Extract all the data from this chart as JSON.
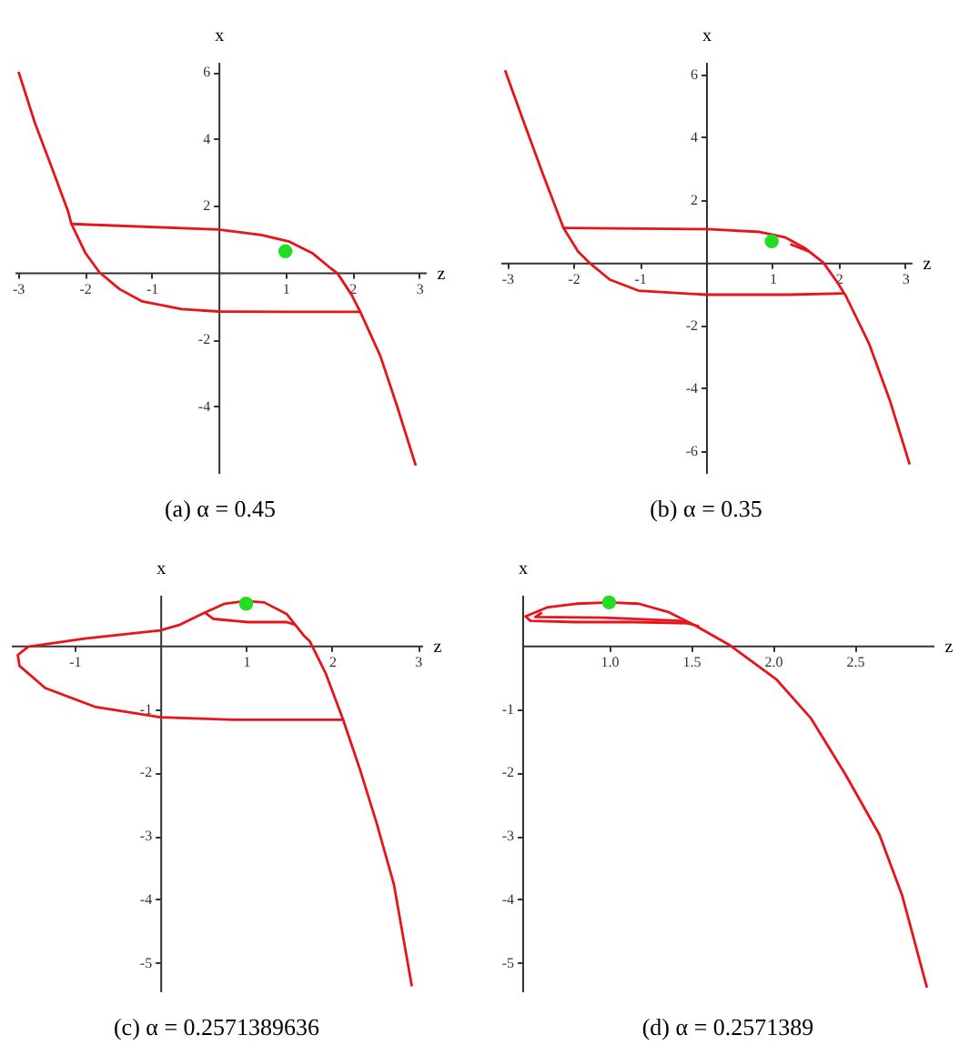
{
  "chart_data": [
    {
      "type": "line",
      "title": "(a) α = 0.45",
      "xlabel": "z",
      "ylabel": "x",
      "xlim": [
        -3.05,
        3.1
      ],
      "ylim": [
        -6.0,
        6.3
      ],
      "xticks": [
        -3,
        -2,
        -1,
        1,
        2,
        3
      ],
      "yticks": [
        -4,
        -2,
        2,
        4,
        6
      ],
      "series": [
        {
          "color": "#e8141c",
          "x": [
            -2.99,
            -2.75,
            -2.5,
            -2.25,
            -2.2,
            -1.99,
            -1.78,
            -1.48,
            -1.14,
            -0.55,
            0,
            1.14,
            2.12
          ],
          "values": [
            6.0,
            4.5,
            3.17,
            1.83,
            1.45,
            0.58,
            0,
            -0.5,
            -0.87,
            -1.1,
            -1.17,
            -1.18,
            -1.18
          ]
        },
        {
          "color": "#e8141c",
          "x": [
            -2.2,
            0,
            0.64,
            1.06,
            1.4,
            1.65,
            1.78,
            1.99,
            2.12,
            2.42,
            2.67,
            2.95
          ],
          "values": [
            1.45,
            1.28,
            1.12,
            0.92,
            0.58,
            0.17,
            -0.03,
            -0.67,
            -1.18,
            -2.5,
            -4.0,
            -5.78
          ]
        },
        {
          "type": "scatter",
          "color": "#22dd22",
          "marker": "circle",
          "x": [
            1.0
          ],
          "values": [
            0.63
          ]
        }
      ]
    },
    {
      "type": "line",
      "title": "(b) α = 0.35",
      "xlabel": "z",
      "ylabel": "x",
      "xlim": [
        -3.1,
        3.1
      ],
      "ylim": [
        -6.7,
        6.4
      ],
      "xticks": [
        -3,
        -2,
        -1,
        1,
        2,
        3
      ],
      "yticks": [
        -6,
        -4,
        -2,
        2,
        4,
        6
      ],
      "series": [
        {
          "color": "#e8141c",
          "x": [
            -3.03,
            -2.76,
            -2.45,
            -2.15,
            -1.93,
            -1.76,
            -1.45,
            -1.02,
            0,
            1.24,
            2.07
          ],
          "values": [
            6.13,
            4.55,
            2.77,
            1.11,
            0.36,
            0,
            -0.54,
            -0.89,
            -1.02,
            -1.02,
            -0.98
          ]
        },
        {
          "color": "#e8141c",
          "x": [
            -2.15,
            0,
            0.81,
            1.2,
            1.5,
            1.77,
            1.98,
            2.11,
            2.46,
            2.77,
            3.07
          ],
          "values": [
            1.11,
            1.07,
            0.98,
            0.8,
            0.45,
            0,
            -0.63,
            -1.07,
            -2.59,
            -4.38,
            -6.43
          ]
        },
        {
          "color": "#e8141c",
          "x": [
            1.27,
            1.55
          ],
          "values": [
            0.59,
            0.36
          ]
        },
        {
          "type": "scatter",
          "color": "#22dd22",
          "marker": "circle",
          "x": [
            0.99
          ],
          "values": [
            0.68
          ]
        }
      ]
    },
    {
      "type": "line",
      "title": "(c) α = 0.2571389636",
      "xlabel": "z",
      "ylabel": "x",
      "xlim": [
        -1.74,
        3.05
      ],
      "ylim": [
        -5.45,
        0.8
      ],
      "xticks": [
        -1,
        1,
        2,
        3
      ],
      "yticks": [
        -5,
        -4,
        -3,
        -2,
        -1
      ],
      "series": [
        {
          "color": "#e8141c",
          "x": [
            2.13,
            0.88,
            0,
            -0.75,
            -1.34,
            -1.64,
            -1.66,
            -1.54,
            -0.88,
            0,
            0.23,
            0.52,
            0.75,
            1.0,
            1.21,
            1.47,
            1.67,
            1.74,
            1.93,
            2.13,
            2.32,
            2.52,
            2.72,
            2.93
          ],
          "values": [
            -1.17,
            -1.17,
            -1.13,
            -0.97,
            -0.67,
            -0.32,
            -0.15,
            -0.02,
            0.11,
            0.24,
            0.33,
            0.52,
            0.66,
            0.7,
            0.68,
            0.5,
            0.16,
            0.07,
            -0.45,
            -1.17,
            -1.93,
            -2.8,
            -3.76,
            -5.37
          ]
        },
        {
          "color": "#e8141c",
          "x": [
            0.52,
            0.62,
            1.02,
            1.47,
            1.57
          ],
          "values": [
            0.52,
            0.42,
            0.37,
            0.37,
            0.33
          ]
        },
        {
          "type": "scatter",
          "color": "#22dd22",
          "marker": "circle",
          "x": [
            1.0
          ],
          "values": [
            0.66
          ]
        }
      ]
    },
    {
      "type": "line",
      "title": "(d) α = 0.2571389",
      "xlabel": "z",
      "ylabel": "x",
      "xlim": [
        0.47,
        2.98
      ],
      "ylim": [
        -5.45,
        0.8
      ],
      "xticks": [
        {
          "value": 1,
          "label": "1.0"
        },
        1.5,
        {
          "value": 2,
          "label": "2.0"
        },
        2.5
      ],
      "yticks": [
        -5,
        -4,
        -3,
        -2,
        -1
      ],
      "series": [
        {
          "color": "#e8141c",
          "x": [
            1.5,
            1.15,
            0.8,
            0.52,
            0.49,
            0.62,
            0.8,
            1.0,
            1.18,
            1.36,
            1.53,
            1.74,
            2.02,
            2.23,
            2.44,
            2.65,
            2.79,
            2.94
          ],
          "values": [
            0.35,
            0.37,
            0.37,
            0.39,
            0.46,
            0.6,
            0.66,
            0.68,
            0.66,
            0.53,
            0.31,
            0,
            -0.53,
            -1.14,
            -2.02,
            -2.98,
            -3.95,
            -5.39
          ]
        },
        {
          "color": "#e8141c",
          "x": [
            0.59,
            0.55,
            0.97,
            1.43,
            1.55
          ],
          "values": [
            0.52,
            0.45,
            0.44,
            0.39,
            0.3
          ]
        },
        {
          "type": "scatter",
          "color": "#22dd22",
          "marker": "circle",
          "x": [
            1.0
          ],
          "values": [
            0.68
          ]
        }
      ]
    }
  ]
}
